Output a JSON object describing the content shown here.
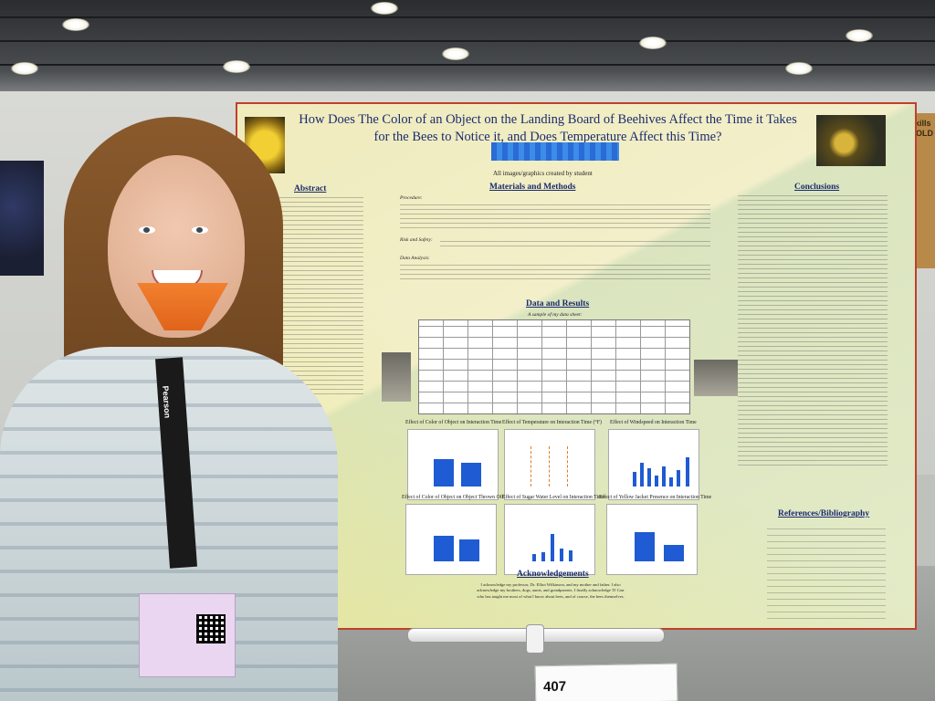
{
  "poster": {
    "title": "How Does The Color of an Object on the Landing Board of Beehives Affect the Time it Takes for the Bees to Notice it, and Does Temperature Affect this Time?",
    "credit": "All images/graphics created by student",
    "sections": {
      "abstract": "Abstract",
      "materials": "Materials and Methods",
      "procedure": "Procedure:",
      "risk": "Risk and Safety:",
      "analysis": "Data Analysis:",
      "data_results": "Data and Results",
      "sample": "A sample of my data sheet:",
      "conclusions": "Conclusions",
      "references": "References/Bibliography",
      "acknowledgements": "Acknowledgements"
    },
    "chart_captions": [
      "Effect of Color of Object on Interaction Time",
      "Effect of Temperature on Interaction Time (°F)",
      "Effect of Windspeed on Interaction Time",
      "Effect of Color of Object on Object Thrown Off",
      "Effect of Sugar Water Level on Interaction Time",
      "Effect of Yellow Jacket Presence on Interaction Time"
    ],
    "acknowledgement_text": "I acknowledge my professor, Dr. Elliot Wilkinson, and my mother and father. I also acknowledge my brothers, dogs, aunts, and grandparents. I finally acknowledge TJ Carr who has taught me most of what I know about bees, and of course, the bees themselves."
  },
  "card": {
    "number": "407"
  },
  "lanyard": {
    "text": "Pearson"
  },
  "side_board": {
    "label": "ArtSkills TRIFOLD"
  }
}
